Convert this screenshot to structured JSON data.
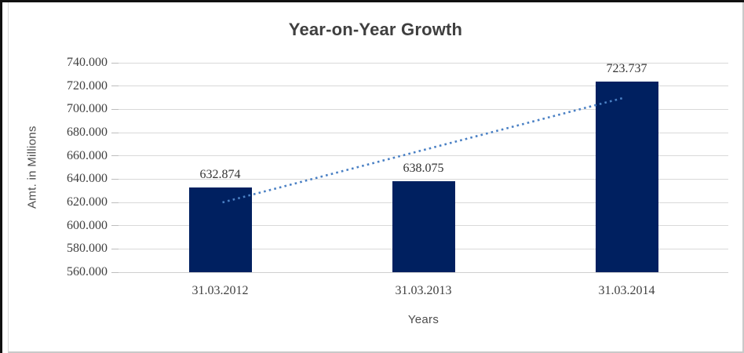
{
  "chart_data": {
    "type": "bar",
    "title": "Year-on-Year Growth",
    "xlabel": "Years",
    "ylabel": "Amt. in Millions",
    "categories": [
      "31.03.2012",
      "31.03.2013",
      "31.03.2014"
    ],
    "values": [
      632.874,
      638.075,
      723.737
    ],
    "data_labels": [
      "632.874",
      "638.075",
      "723.737"
    ],
    "ylim": [
      560,
      740
    ],
    "y_ticks": [
      {
        "value": 560,
        "label": "560.000"
      },
      {
        "value": 580,
        "label": "580.000"
      },
      {
        "value": 600,
        "label": "600.000"
      },
      {
        "value": 620,
        "label": "620.000"
      },
      {
        "value": 640,
        "label": "640.000"
      },
      {
        "value": 660,
        "label": "660.000"
      },
      {
        "value": 680,
        "label": "680.000"
      },
      {
        "value": 700,
        "label": "700.000"
      },
      {
        "value": 720,
        "label": "720.000"
      },
      {
        "value": 740,
        "label": "740.000"
      }
    ],
    "grid": true,
    "legend": "none",
    "bar_color": "#002060",
    "gridline_color": "#d9d9d9",
    "text_color": "#404040",
    "trendline": {
      "style": "dotted",
      "color": "#4a80c4",
      "start_value": 620,
      "end_value": 710,
      "start_category_index": 0,
      "end_category_index": 2
    }
  }
}
